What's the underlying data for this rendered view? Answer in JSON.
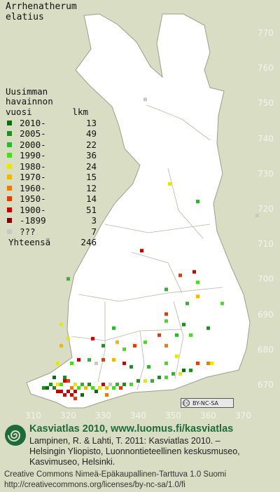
{
  "species": [
    "Arrhenatherum",
    "elatius"
  ],
  "legend": {
    "header": [
      "Uusimman",
      "havainnon"
    ],
    "col_year": "vuosi",
    "col_count": "lkm",
    "rows": [
      {
        "period": "2010-",
        "count": "13",
        "color": "#0b6e0b"
      },
      {
        "period": "2005-",
        "count": "49",
        "color": "#1e8f1e"
      },
      {
        "period": "2000-",
        "count": "22",
        "color": "#2fb52f"
      },
      {
        "period": "1990-",
        "count": "36",
        "color": "#46dd1f"
      },
      {
        "period": "1980-",
        "count": "24",
        "color": "#e6e800"
      },
      {
        "period": "1970-",
        "count": "15",
        "color": "#f2b800"
      },
      {
        "period": "1960-",
        "count": "12",
        "color": "#ee7a00"
      },
      {
        "period": "1950-",
        "count": "14",
        "color": "#e23a00"
      },
      {
        "period": "1900-",
        "count": "51",
        "color": "#c40000"
      },
      {
        "period": "-1899",
        "count": "3",
        "color": "#7a0000"
      },
      {
        "period": " ???",
        "count": "7",
        "color": "#c8c8c8"
      }
    ],
    "total_label": "Yhteensä",
    "total_count": "246"
  },
  "axes": {
    "y_ticks": [
      "770",
      "760",
      "750",
      "740",
      "730",
      "720",
      "710",
      "700",
      "690",
      "680",
      "670"
    ],
    "x_ticks": [
      "310",
      "320",
      "330",
      "340",
      "350",
      "360",
      "370"
    ]
  },
  "colors": {
    "background": "#d8ddc3",
    "land": "#ffffff",
    "border": "#9aa08a",
    "grid_label": "#f4f4f0"
  },
  "license_badge": {
    "icon": "cc-icon",
    "text": "BY-NC-SA"
  },
  "credit": {
    "brand": "Kasviatlas 2010, www.luomus.fi/kasviatlas",
    "citation": [
      "Lampinen, R. & Lahti, T. 2011: Kasviatlas 2010. –",
      "Helsingin Yliopisto, Luonnontieteellinen keskusmuseo,",
      "Kasvimuseo, Helsinki."
    ],
    "license": [
      "Creative Commons Nimeä-Epäkaupallinen-Tarttuva 1.0 Suomi",
      "http://creativecommons.org/licenses/by-nc-sa/1.0/fi"
    ],
    "logo_icon": "spiral-logo-icon"
  },
  "observations": [
    {
      "e": 313.5,
      "n": 669.5,
      "p": "2005-"
    },
    {
      "e": 314.5,
      "n": 669.5,
      "p": "2010-"
    },
    {
      "e": 315.5,
      "n": 670.5,
      "p": "2005-"
    },
    {
      "e": 316.5,
      "n": 669.5,
      "p": "2005-"
    },
    {
      "e": 317.5,
      "n": 668.5,
      "p": "1900-"
    },
    {
      "e": 318.5,
      "n": 668.5,
      "p": "1900-"
    },
    {
      "e": 319.5,
      "n": 667.5,
      "p": "1900-"
    },
    {
      "e": 320.5,
      "n": 668.5,
      "p": "1900-"
    },
    {
      "e": 321.5,
      "n": 667.5,
      "p": "1900-"
    },
    {
      "e": 322.5,
      "n": 668.5,
      "p": "1900-"
    },
    {
      "e": 322.5,
      "n": 670.5,
      "p": "1980-"
    },
    {
      "e": 323.5,
      "n": 669.5,
      "p": "1990-"
    },
    {
      "e": 324.5,
      "n": 670.5,
      "p": "2000-"
    },
    {
      "e": 325.5,
      "n": 669.5,
      "p": "1970-"
    },
    {
      "e": 319.5,
      "n": 672.5,
      "p": "2005-"
    },
    {
      "e": 320.5,
      "n": 671.5,
      "p": "1950-"
    },
    {
      "e": 319.5,
      "n": 671.5,
      "p": "1900-"
    },
    {
      "e": 318.5,
      "n": 670.5,
      "p": "1990-"
    },
    {
      "e": 321.5,
      "n": 669.5,
      "p": "1960-"
    },
    {
      "e": 326.5,
      "n": 670.5,
      "p": "2005-"
    },
    {
      "e": 327.5,
      "n": 669.5,
      "p": "1990-"
    },
    {
      "e": 328.5,
      "n": 668.5,
      "p": "2010-"
    },
    {
      "e": 329.5,
      "n": 669.5,
      "p": "1980-"
    },
    {
      "e": 330.5,
      "n": 670.5,
      "p": "1900-"
    },
    {
      "e": 331.5,
      "n": 669.5,
      "p": "1970-"
    },
    {
      "e": 332.5,
      "n": 670.5,
      "p": "???"
    },
    {
      "e": 333.5,
      "n": 669.5,
      "p": "1990-"
    },
    {
      "e": 334.5,
      "n": 670.5,
      "p": "2000-"
    },
    {
      "e": 335.5,
      "n": 669.5,
      "p": "1950-"
    },
    {
      "e": 336.5,
      "n": 670.5,
      "p": "2005-"
    },
    {
      "e": 338.5,
      "n": 670.5,
      "p": "1990-"
    },
    {
      "e": 340.5,
      "n": 671.5,
      "p": "2005-"
    },
    {
      "e": 342.5,
      "n": 671.5,
      "p": "1980-"
    },
    {
      "e": 344.5,
      "n": 671.5,
      "p": "2000-"
    },
    {
      "e": 346.5,
      "n": 672.5,
      "p": "2005-"
    },
    {
      "e": 348.5,
      "n": 672.5,
      "p": "1990-"
    },
    {
      "e": 350.5,
      "n": 673.5,
      "p": "2000-"
    },
    {
      "e": 352.5,
      "n": 673.5,
      "p": "1980-"
    },
    {
      "e": 353.5,
      "n": 674.5,
      "p": "2010-"
    },
    {
      "e": 355.5,
      "n": 674.5,
      "p": "2005-"
    },
    {
      "e": 357.5,
      "n": 676.5,
      "p": "1950-"
    },
    {
      "e": 360.5,
      "n": 676.5,
      "p": "1960-"
    },
    {
      "e": 361.5,
      "n": 676.5,
      "p": "1980-"
    },
    {
      "e": 317.5,
      "n": 676.5,
      "p": "1980-"
    },
    {
      "e": 321.5,
      "n": 676.5,
      "p": "1990-"
    },
    {
      "e": 323.5,
      "n": 677.5,
      "p": "1900-"
    },
    {
      "e": 326.5,
      "n": 677.5,
      "p": "2000-"
    },
    {
      "e": 328.5,
      "n": 676.5,
      "p": "???"
    },
    {
      "e": 330.5,
      "n": 677.5,
      "p": "1950-"
    },
    {
      "e": 333.5,
      "n": 677.5,
      "p": "1970-"
    },
    {
      "e": 336.5,
      "n": 676.5,
      "p": "1900-"
    },
    {
      "e": 338.5,
      "n": 675.5,
      "p": "2005-"
    },
    {
      "e": 343.5,
      "n": 675.5,
      "p": "2000-"
    },
    {
      "e": 348.5,
      "n": 676.5,
      "p": "1990-"
    },
    {
      "e": 351.5,
      "n": 678.5,
      "p": "1980-"
    },
    {
      "e": 318.5,
      "n": 681.5,
      "p": "1970-"
    },
    {
      "e": 320.5,
      "n": 683.5,
      "p": "1980-"
    },
    {
      "e": 327.5,
      "n": 683.5,
      "p": "1900-"
    },
    {
      "e": 330.5,
      "n": 681.5,
      "p": "2005-"
    },
    {
      "e": 334.5,
      "n": 682.5,
      "p": "1970-"
    },
    {
      "e": 336.5,
      "n": 680.5,
      "p": "1990-"
    },
    {
      "e": 339.5,
      "n": 681.5,
      "p": "1950-"
    },
    {
      "e": 342.5,
      "n": 682.5,
      "p": "1990-"
    },
    {
      "e": 346.5,
      "n": 684.5,
      "p": "1950-"
    },
    {
      "e": 348.5,
      "n": 681.5,
      "p": "1960-"
    },
    {
      "e": 351.5,
      "n": 684.5,
      "p": "2000-"
    },
    {
      "e": 355.5,
      "n": 684.5,
      "p": "1990-"
    },
    {
      "e": 318.5,
      "n": 687.5,
      "p": "1980-"
    },
    {
      "e": 333.5,
      "n": 686.5,
      "p": "2000-"
    },
    {
      "e": 348.5,
      "n": 688.5,
      "p": "1990-"
    },
    {
      "e": 348.5,
      "n": 690.5,
      "p": "1950-"
    },
    {
      "e": 353.5,
      "n": 687.5,
      "p": "2005-"
    },
    {
      "e": 360.5,
      "n": 686.5,
      "p": "2005-"
    },
    {
      "e": 354.5,
      "n": 693.5,
      "p": "2000-"
    },
    {
      "e": 357.5,
      "n": 695.5,
      "p": "1970-"
    },
    {
      "e": 364.5,
      "n": 693.5,
      "p": "1990-"
    },
    {
      "e": 348.5,
      "n": 697.5,
      "p": "2000-"
    },
    {
      "e": 352.5,
      "n": 701.5,
      "p": "1950-"
    },
    {
      "e": 357.5,
      "n": 699.5,
      "p": "1990-"
    },
    {
      "e": 320.5,
      "n": 700.5,
      "p": "2000-"
    },
    {
      "e": 341.5,
      "n": 708.5,
      "p": "1900-"
    },
    {
      "e": 356.5,
      "n": 702.5,
      "p": "1900-"
    },
    {
      "e": 357.5,
      "n": 722.5,
      "p": "2000-"
    },
    {
      "e": 349.5,
      "n": 727.5,
      "p": "1980-"
    },
    {
      "e": 374.5,
      "n": 718.5,
      "p": "???"
    },
    {
      "e": 342.5,
      "n": 751.5,
      "p": "???"
    },
    {
      "e": 316.5,
      "n": 672.5,
      "p": "2010-"
    },
    {
      "e": 317.5,
      "n": 670.5,
      "p": "1980-"
    },
    {
      "e": 322.5,
      "n": 666.5,
      "p": "1950-"
    },
    {
      "e": 324.5,
      "n": 667.5,
      "p": "2010-"
    },
    {
      "e": 331.5,
      "n": 667.5,
      "p": "1960-"
    }
  ]
}
